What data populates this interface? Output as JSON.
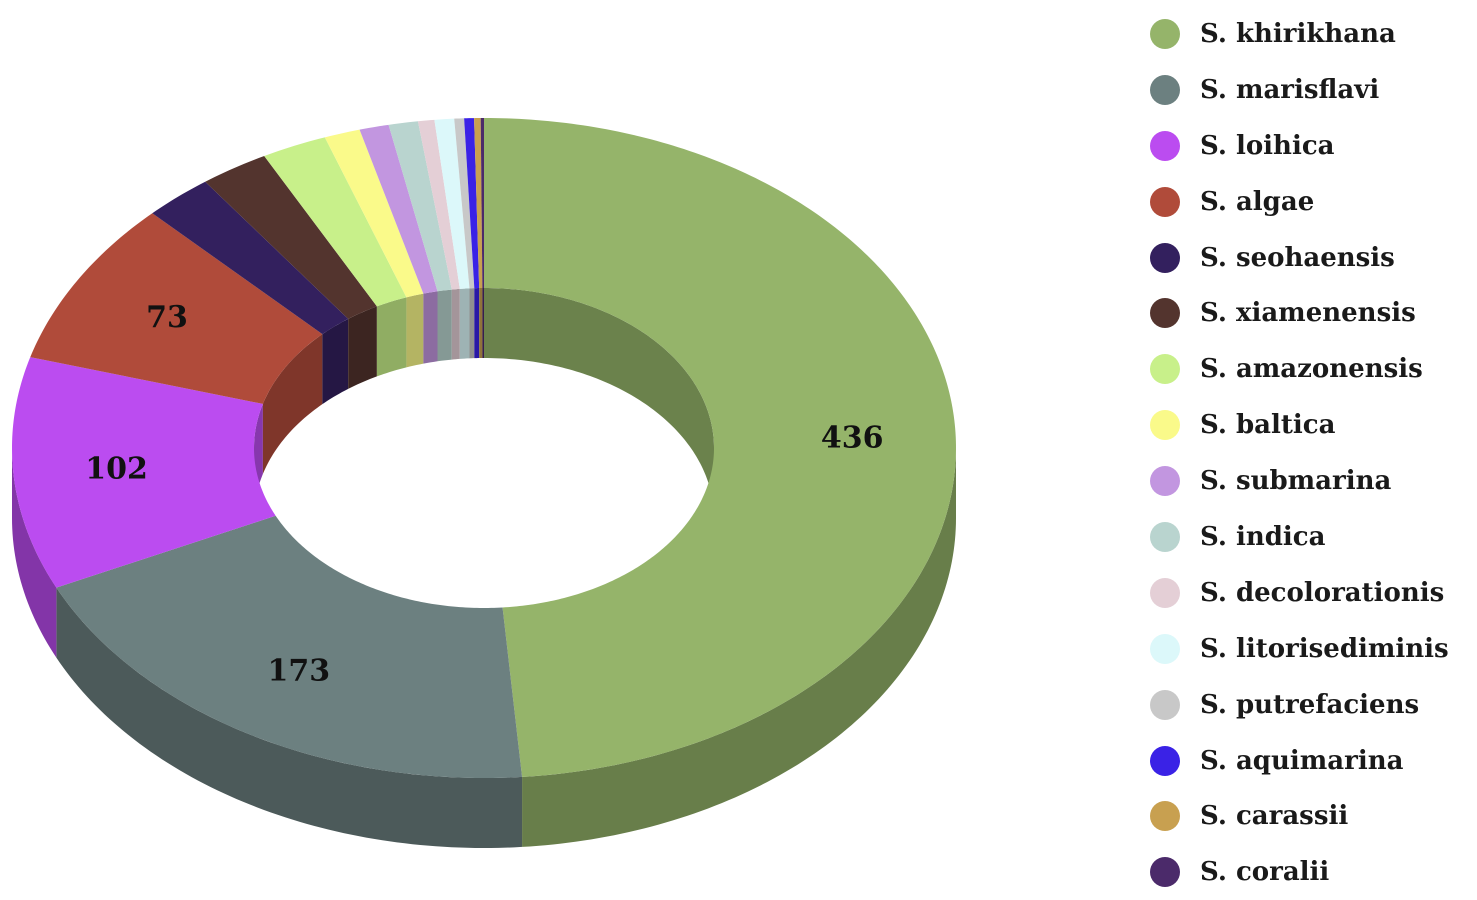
{
  "chart_data": {
    "type": "pie",
    "variant": "3d-donut",
    "title": "",
    "legend_position": "right",
    "slices": [
      {
        "label": "S. khirikhana",
        "value": 436,
        "color": "#95b46a",
        "show_label": true
      },
      {
        "label": "S. marisflavi",
        "value": 173,
        "color": "#6c8080",
        "show_label": true
      },
      {
        "label": "S. loihica",
        "value": 102,
        "color": "#bb4cf0",
        "show_label": true
      },
      {
        "label": "S. algae",
        "value": 73,
        "color": "#b04b3a",
        "show_label": true
      },
      {
        "label": "S. seohaensis",
        "value": 21,
        "color": "#33205e",
        "show_label": false
      },
      {
        "label": "S. xiamenensis",
        "value": 21,
        "color": "#53342e",
        "show_label": false
      },
      {
        "label": "S. amazonensis",
        "value": 20,
        "color": "#c8f08a",
        "show_label": false
      },
      {
        "label": "S. baltica",
        "value": 11,
        "color": "#fafa8a",
        "show_label": false
      },
      {
        "label": "S. submarina",
        "value": 9,
        "color": "#c296e0",
        "show_label": false
      },
      {
        "label": "S. indica",
        "value": 9,
        "color": "#b9d4cf",
        "show_label": false
      },
      {
        "label": "S. decolorationis",
        "value": 5,
        "color": "#e4cfd6",
        "show_label": false
      },
      {
        "label": "S. litorisediminis",
        "value": 6,
        "color": "#dcf8fa",
        "show_label": false
      },
      {
        "label": "S. putrefaciens",
        "value": 3,
        "color": "#c8c8c8",
        "show_label": false
      },
      {
        "label": "S. aquimarina",
        "value": 3,
        "color": "#3a22e6",
        "show_label": false
      },
      {
        "label": "S. carassii",
        "value": 2,
        "color": "#c8a050",
        "show_label": false
      },
      {
        "label": "S. coralii",
        "value": 1,
        "color": "#4b2a6a",
        "show_label": false
      }
    ]
  }
}
